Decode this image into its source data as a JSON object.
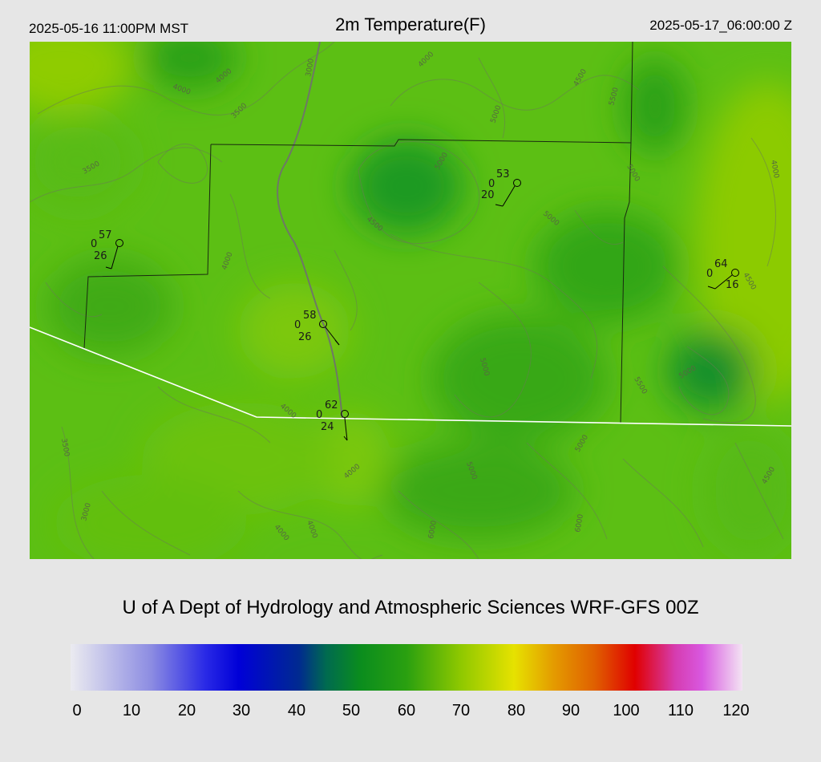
{
  "header": {
    "local_time": "2025-05-16 11:00PM MST",
    "title": "2m Temperature(F)",
    "utc_time": "2025-05-17_06:00:00 Z"
  },
  "credit": "U of A Dept of Hydrology and Atmospheric Sciences WRF-GFS 00Z",
  "colorbar": {
    "ticks": [
      "0",
      "10",
      "20",
      "30",
      "40",
      "50",
      "60",
      "70",
      "80",
      "90",
      "100",
      "110",
      "120"
    ],
    "colors": [
      "#e6e6ec",
      "#8080e0",
      "#2020e0",
      "#0000d8",
      "#003a80",
      "#0a8a20",
      "#2aa010",
      "#8cc800",
      "#e8e000",
      "#e07000",
      "#e00000",
      "#d040d0",
      "#f0d8f0"
    ]
  },
  "contour_labels": [
    "3000",
    "3500",
    "4000",
    "4500",
    "5000",
    "5500",
    "6000"
  ],
  "stations": [
    {
      "temp": "57",
      "wind_left": "0",
      "dew": "26"
    },
    {
      "temp": "53",
      "wind_left": "0",
      "dew": "20"
    },
    {
      "temp": "64",
      "wind_left": "0",
      "dew": "16"
    },
    {
      "temp": "58",
      "wind_left": "0",
      "dew": "26"
    },
    {
      "temp": "62",
      "wind_left": "0",
      "dew": "24"
    }
  ]
}
